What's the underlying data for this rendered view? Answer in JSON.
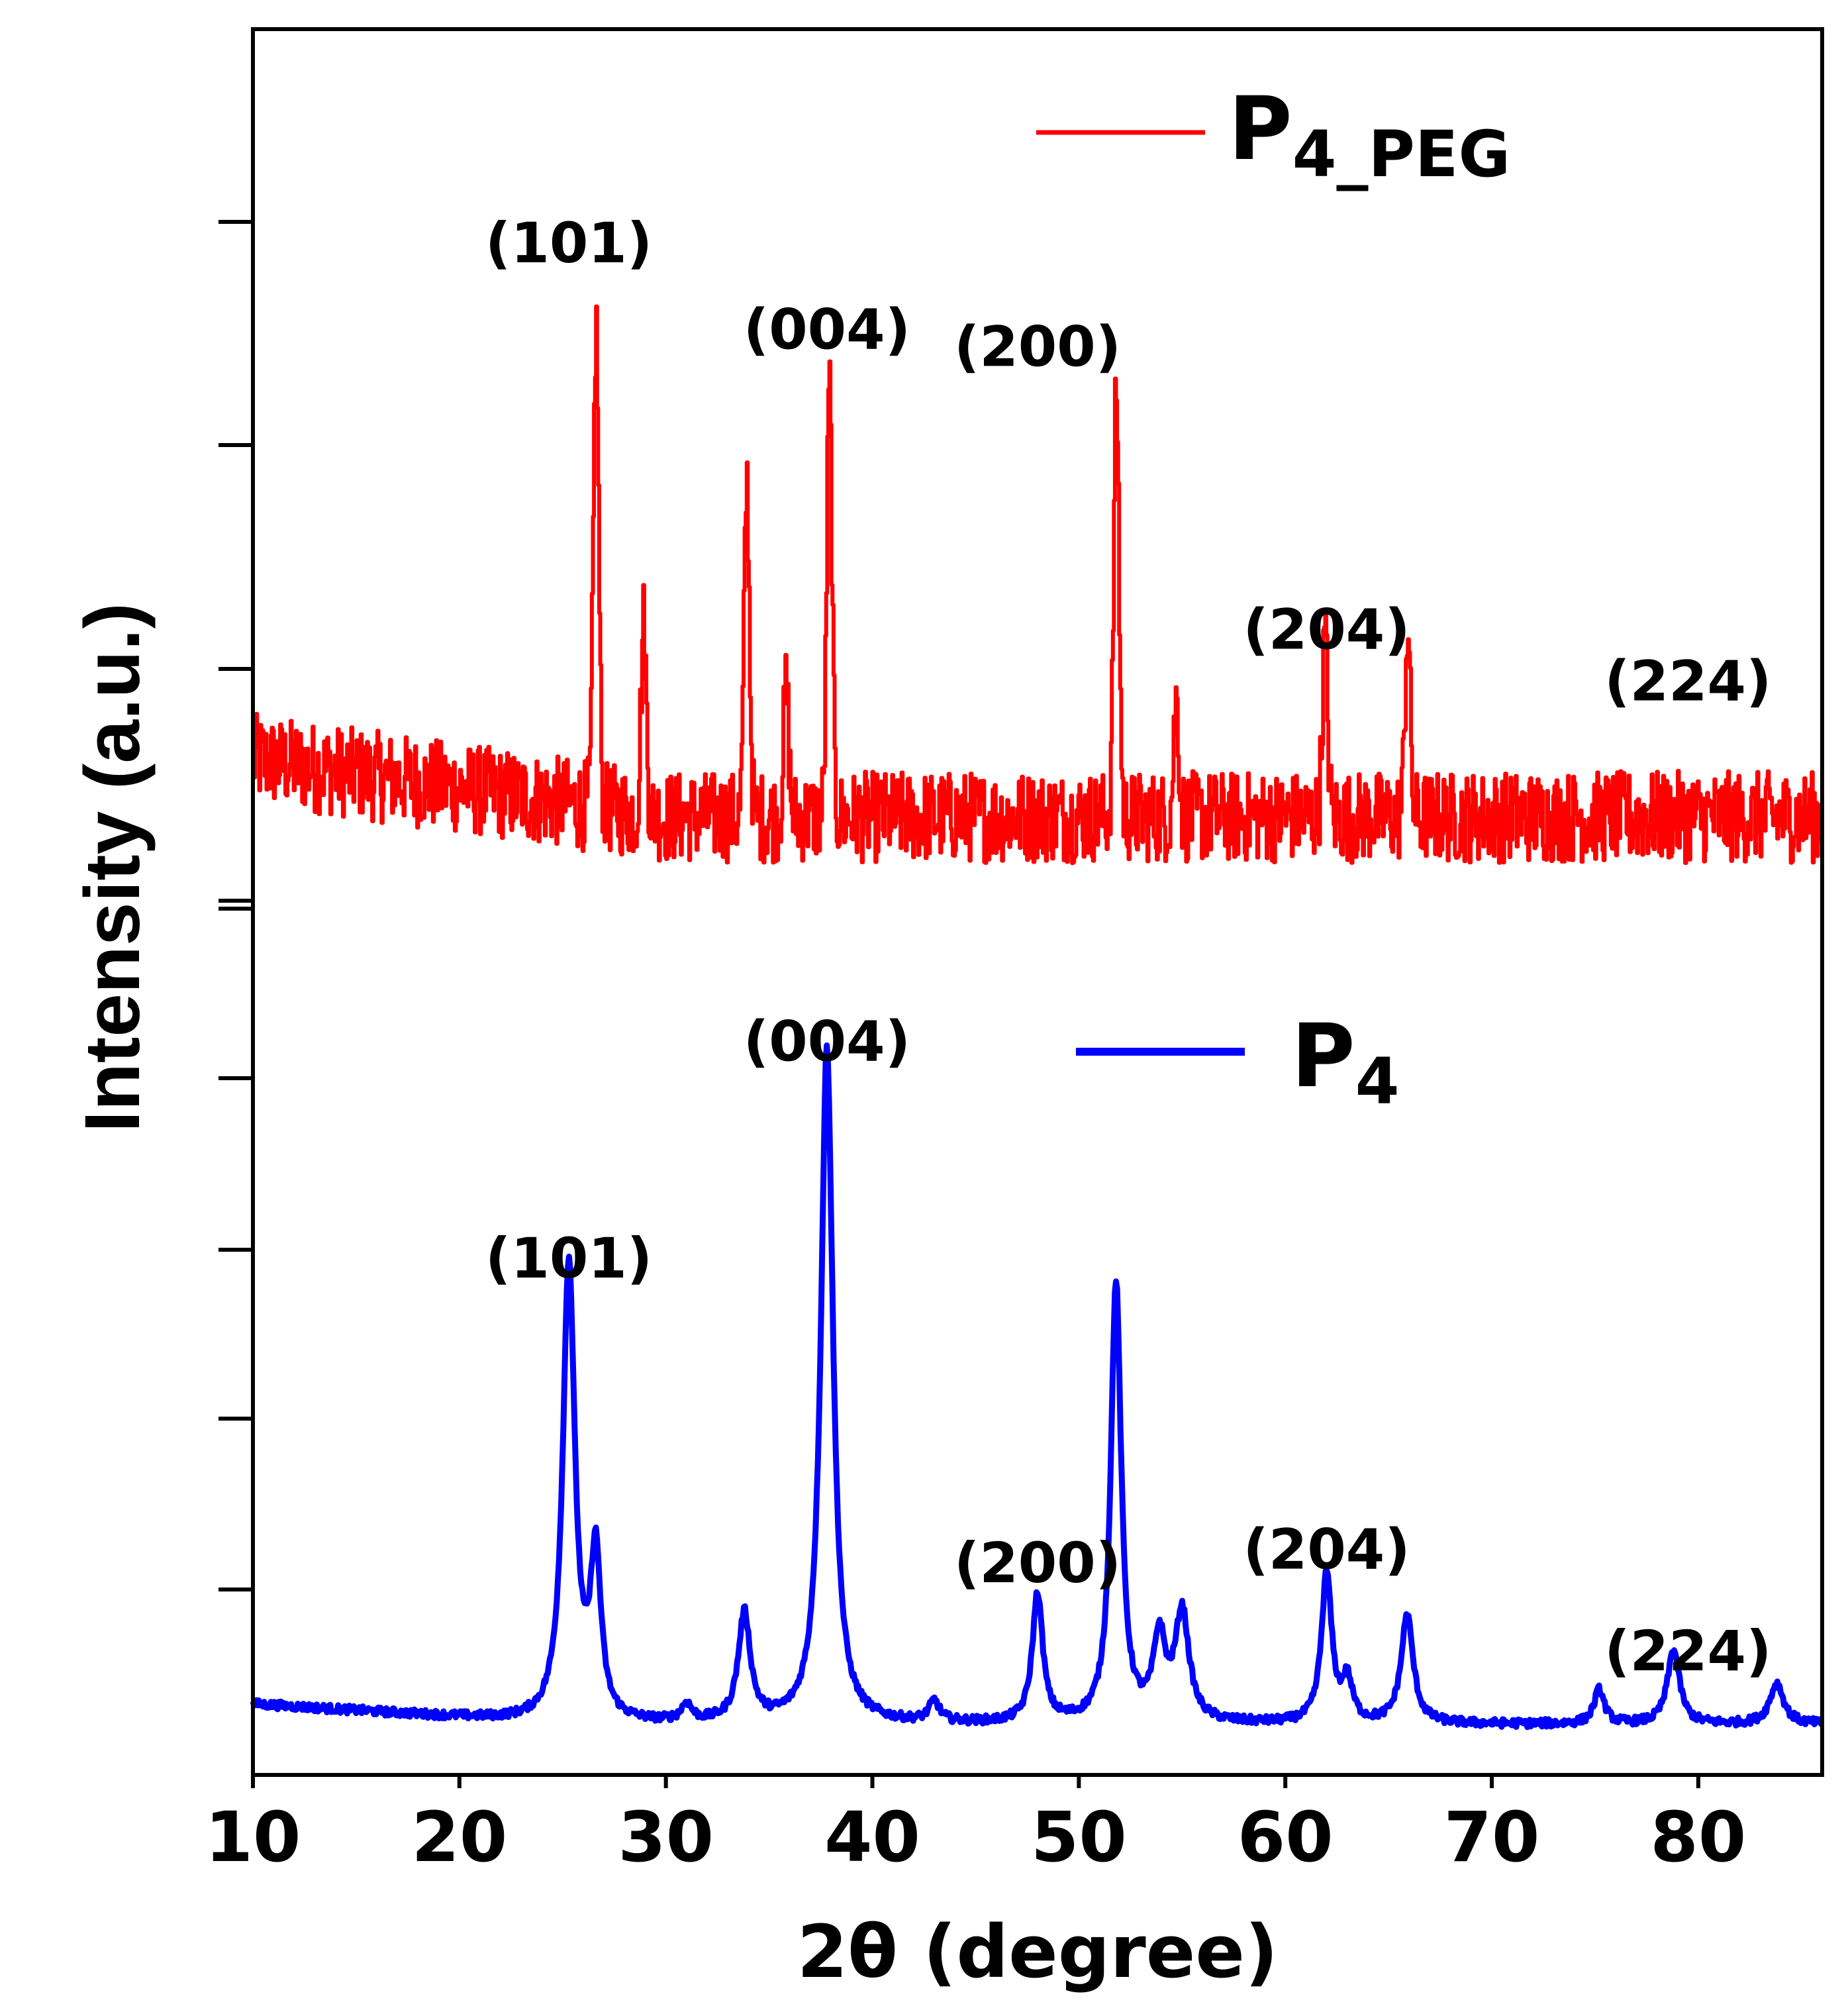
{
  "chart_data": {
    "type": "line",
    "xlabel": "2θ (degree)",
    "ylabel": "Intensity (a.u.)",
    "xlim": [
      10,
      86
    ],
    "xticks": [
      10,
      20,
      30,
      40,
      50,
      60,
      70,
      80
    ],
    "grid": false,
    "panels": [
      {
        "name": "P4_PEG",
        "legend_main": "P",
        "legend_sub": "4_PEG",
        "color": "#ff0000",
        "ylim": [
          0,
          1.2
        ],
        "legend_position": "top-right",
        "peak_labels": [
          {
            "label": "(101)",
            "x": 25.3,
            "y": 1.09
          },
          {
            "label": "(004)",
            "x": 37.8,
            "y": 0.94
          },
          {
            "label": "(200)",
            "x": 48.0,
            "y": 0.91
          },
          {
            "label": "(204)",
            "x": 62.0,
            "y": 0.42
          },
          {
            "label": "(224)",
            "x": 79.5,
            "y": 0.33
          }
        ],
        "peaks": [
          {
            "x": 26.6,
            "h": 0.83
          },
          {
            "x": 33.9,
            "h": 0.58
          },
          {
            "x": 37.9,
            "h": 0.74
          },
          {
            "x": 51.8,
            "h": 0.74
          },
          {
            "x": 61.9,
            "h": 0.31
          },
          {
            "x": 65.9,
            "h": 0.33
          },
          {
            "x": 35.8,
            "h": 0.22
          },
          {
            "x": 28.9,
            "h": 0.33
          },
          {
            "x": 54.7,
            "h": 0.2
          }
        ]
      },
      {
        "name": "P4",
        "legend_main": "P",
        "legend_sub": "4",
        "color": "#0000ff",
        "ylim": [
          0,
          1.1
        ],
        "legend_position": "top-center",
        "peak_labels": [
          {
            "label": "(101)",
            "x": 25.3,
            "y": 0.71
          },
          {
            "label": "(004)",
            "x": 37.8,
            "y": 1.03
          },
          {
            "label": "(200)",
            "x": 48.0,
            "y": 0.26
          },
          {
            "label": "(204)",
            "x": 62.0,
            "y": 0.28
          },
          {
            "label": "(224)",
            "x": 79.5,
            "y": 0.13
          }
        ],
        "peaks": [
          {
            "x": 25.3,
            "h": 0.68,
            "w": 0.35
          },
          {
            "x": 26.6,
            "h": 0.24,
            "w": 0.3
          },
          {
            "x": 33.8,
            "h": 0.16,
            "w": 0.35
          },
          {
            "x": 37.8,
            "h": 1.0,
            "w": 0.35
          },
          {
            "x": 48.0,
            "h": 0.19,
            "w": 0.3
          },
          {
            "x": 51.8,
            "h": 0.65,
            "w": 0.3
          },
          {
            "x": 53.9,
            "h": 0.12,
            "w": 0.35
          },
          {
            "x": 55.0,
            "h": 0.16,
            "w": 0.4
          },
          {
            "x": 62.0,
            "h": 0.22,
            "w": 0.3
          },
          {
            "x": 63.0,
            "h": 0.06,
            "w": 0.3
          },
          {
            "x": 65.9,
            "h": 0.16,
            "w": 0.35
          },
          {
            "x": 75.2,
            "h": 0.05,
            "w": 0.3
          },
          {
            "x": 78.8,
            "h": 0.11,
            "w": 0.35
          },
          {
            "x": 83.8,
            "h": 0.06,
            "w": 0.4
          },
          {
            "x": 43.0,
            "h": 0.03,
            "w": 0.3
          },
          {
            "x": 31.0,
            "h": 0.025,
            "w": 0.3
          }
        ]
      }
    ]
  }
}
